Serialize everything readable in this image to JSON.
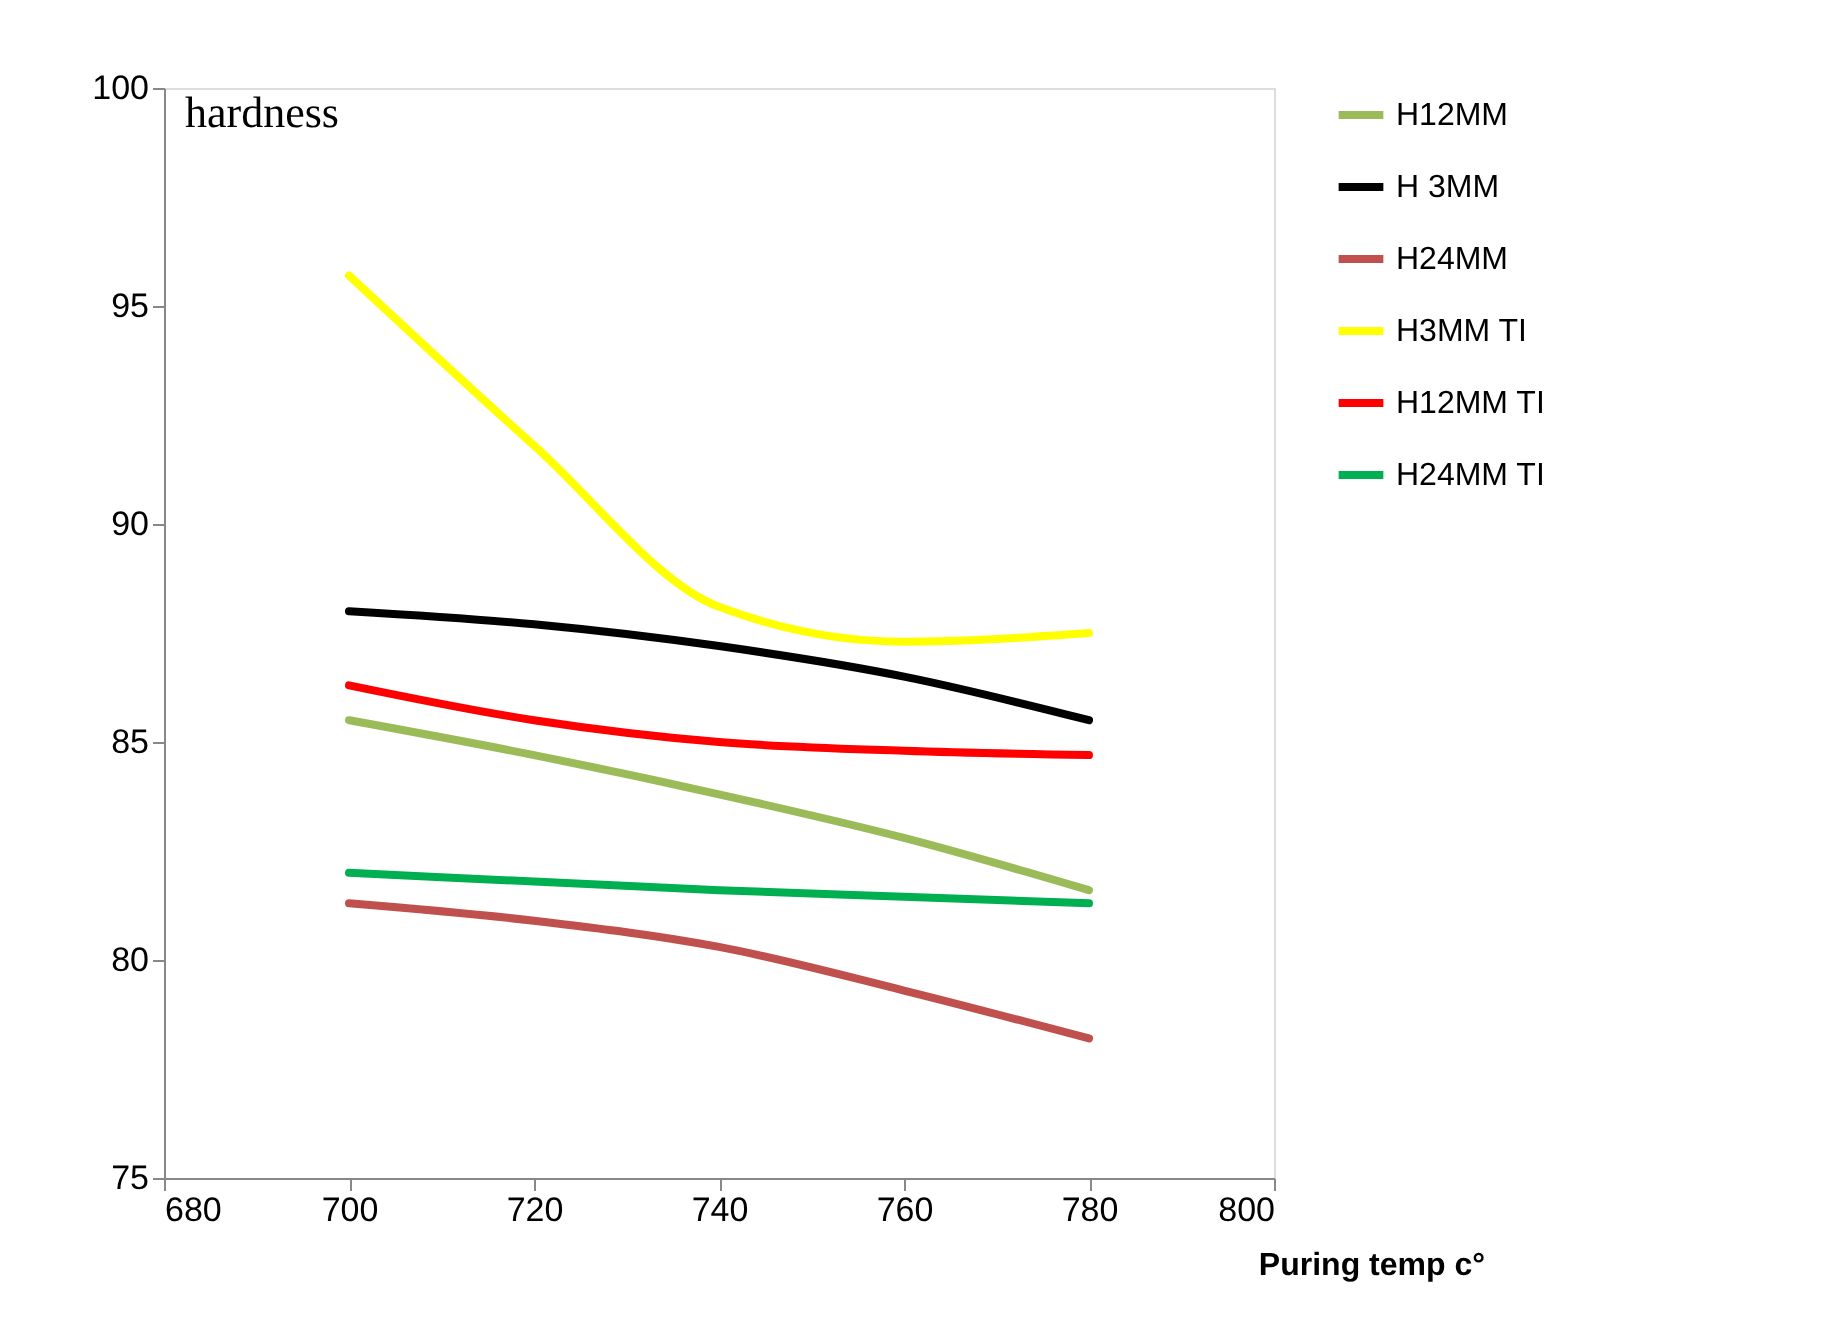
{
  "chart_data": {
    "type": "line",
    "ylabel": "hardness",
    "xlabel": "Puring temp c°",
    "x": [
      700,
      720,
      740,
      760,
      780
    ],
    "series": [
      {
        "name": "H12MM",
        "color": "#9bbb59",
        "values": [
          85.5,
          84.7,
          83.8,
          82.8,
          81.6
        ]
      },
      {
        "name": "H 3MM",
        "color": "#000000",
        "values": [
          88.0,
          87.7,
          87.2,
          86.5,
          85.5
        ]
      },
      {
        "name": "H24MM",
        "color": "#c0504d",
        "values": [
          81.3,
          80.9,
          80.3,
          79.3,
          78.2
        ]
      },
      {
        "name": "H3MM TI",
        "color": "#ffff00",
        "values": [
          95.7,
          91.8,
          88.1,
          87.3,
          87.5
        ]
      },
      {
        "name": "H12MM TI",
        "color": "#ff0000",
        "values": [
          86.3,
          85.5,
          85.0,
          84.8,
          84.7
        ]
      },
      {
        "name": "H24MM TI",
        "color": "#00b050",
        "values": [
          82.0,
          81.8,
          81.6,
          81.45,
          81.3
        ]
      }
    ],
    "xlim": [
      680,
      800
    ],
    "xticks": [
      680,
      700,
      720,
      740,
      760,
      780,
      800
    ],
    "ylim": [
      75,
      100
    ],
    "yticks": [
      75,
      80,
      85,
      90,
      95,
      100
    ],
    "grid": false,
    "legend": "right",
    "marker": "none",
    "line_style": "solid"
  }
}
